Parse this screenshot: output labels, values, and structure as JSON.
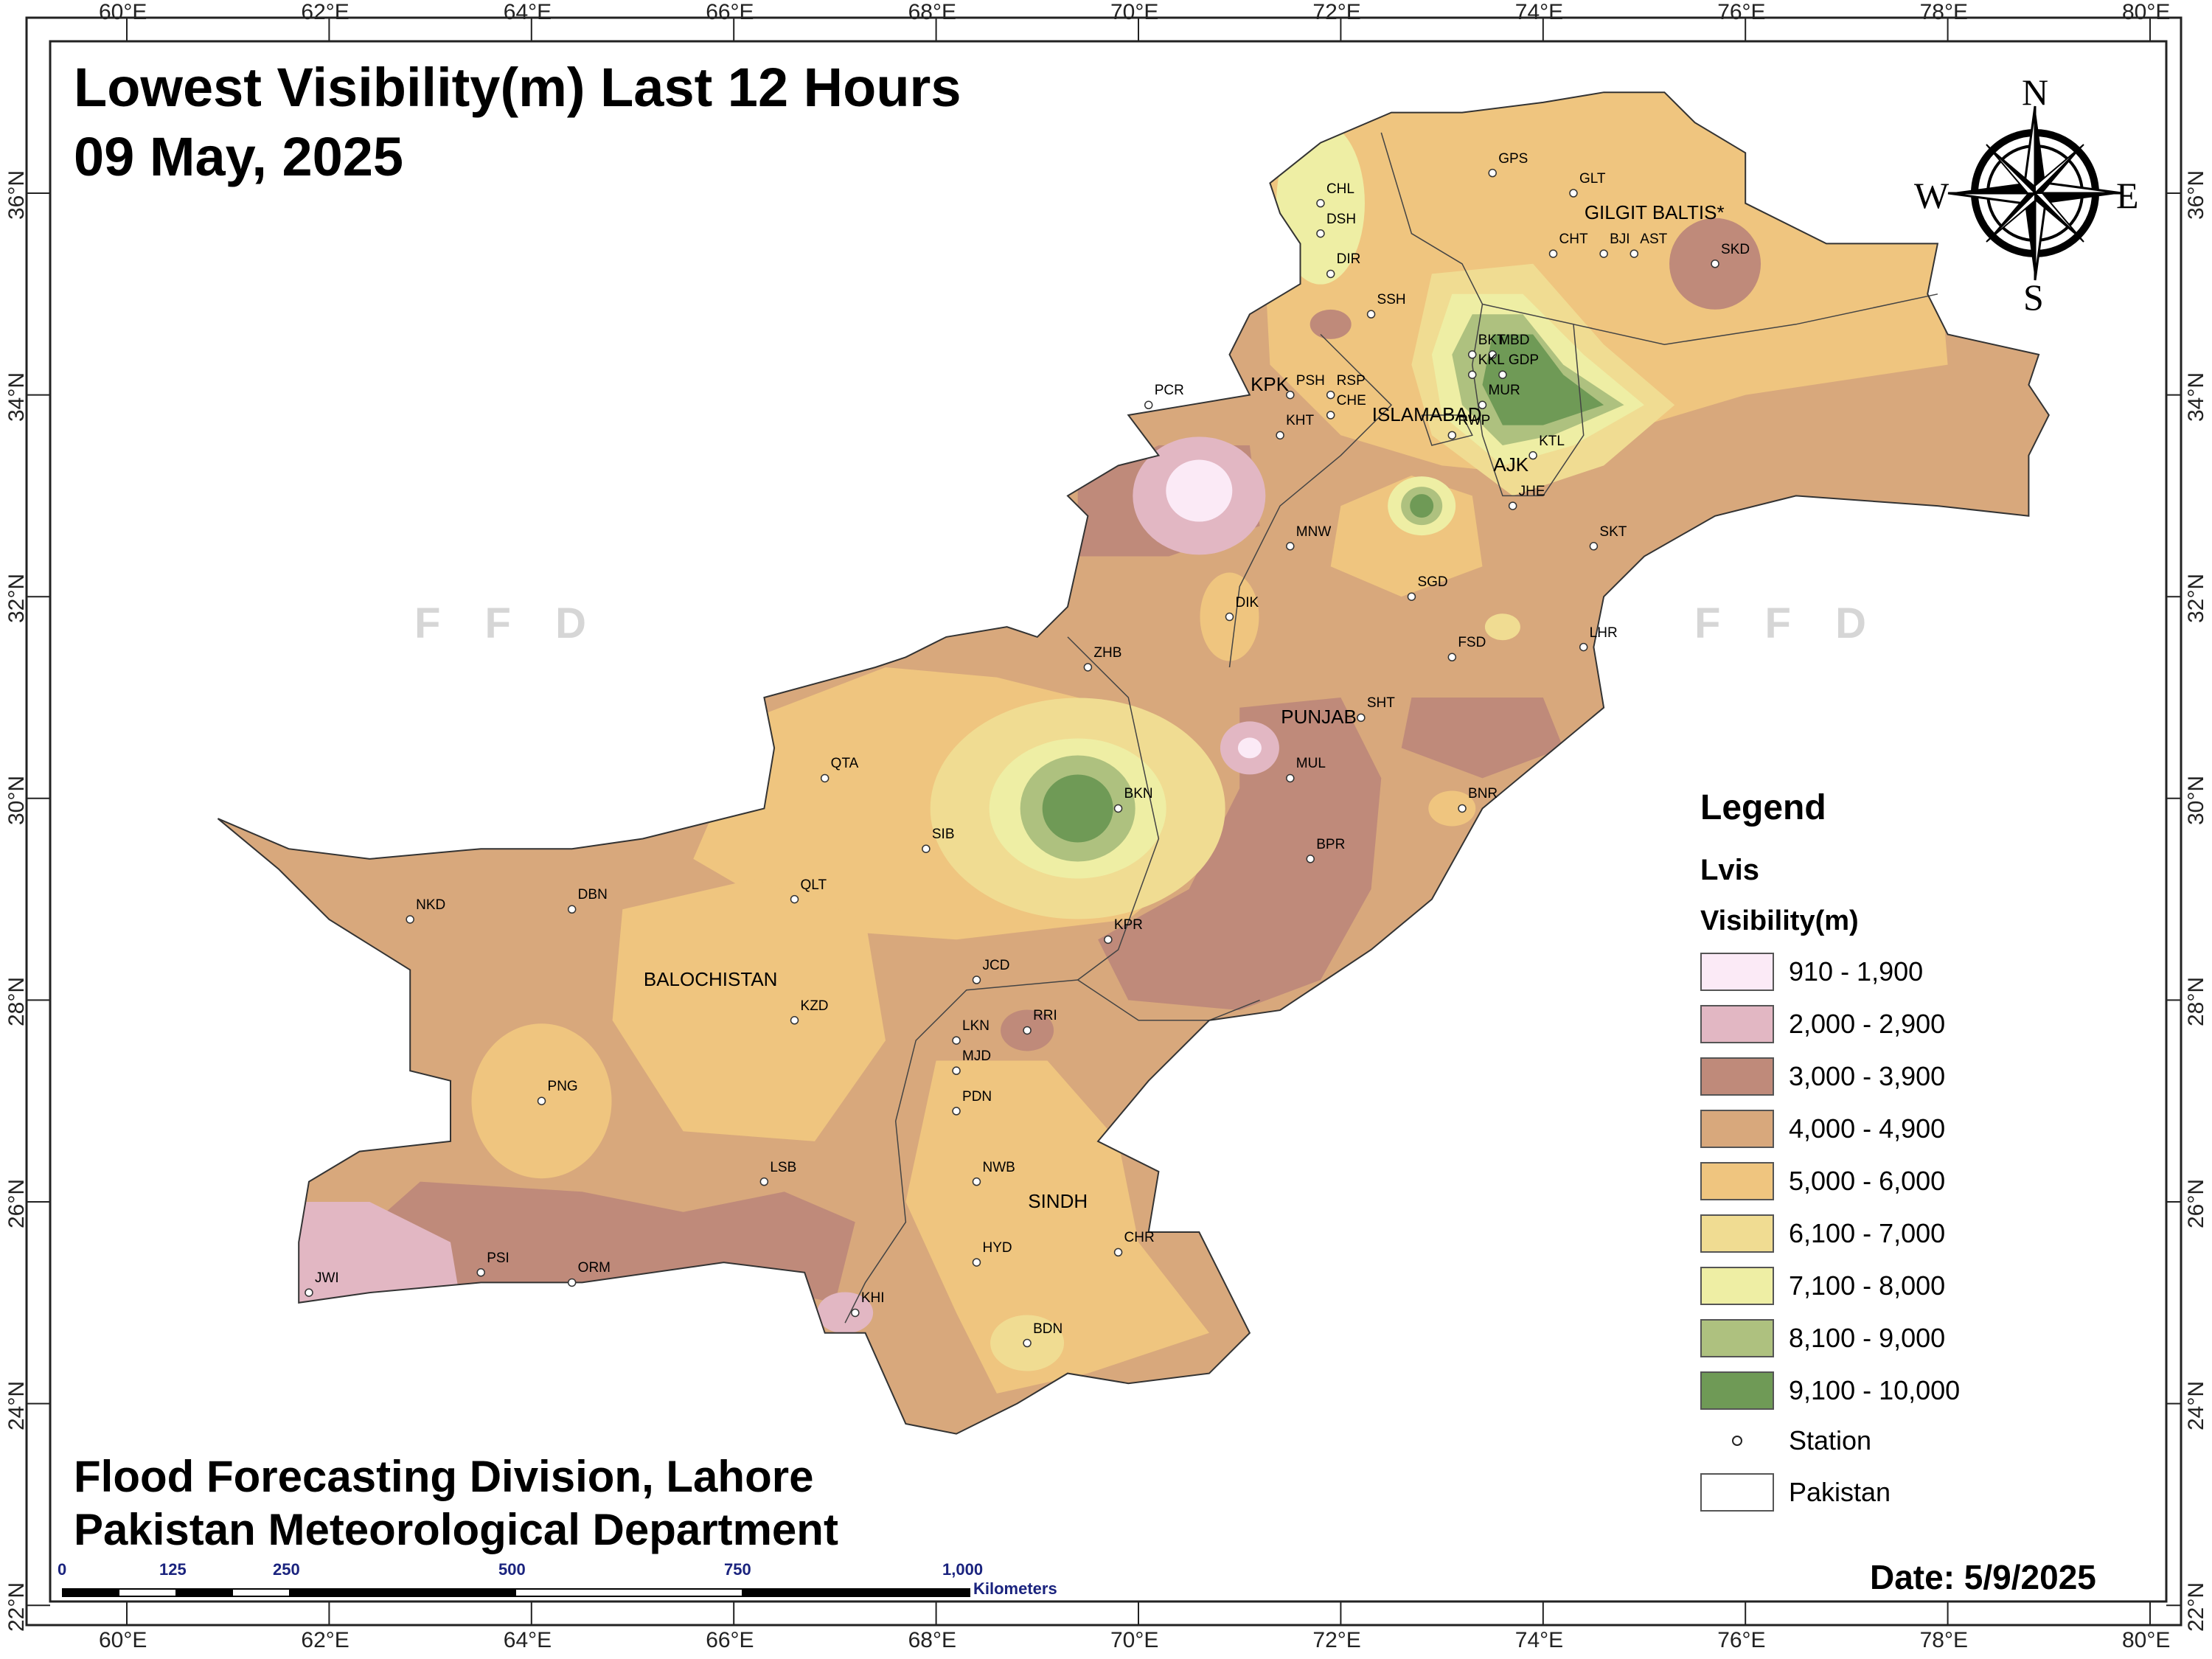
{
  "title": {
    "line1": "Lowest Visibility(m) Last 12 Hours",
    "line2": "09 May, 2025"
  },
  "footer": {
    "line1": "Flood Forecasting Division, Lahore",
    "line2": "Pakistan Meteorological Department"
  },
  "date_text": "Date: 5/9/2025",
  "watermark": "F F D",
  "legend": {
    "heading": "Legend",
    "layer": "Lvis",
    "field": "Visibility(m)",
    "classes": [
      {
        "label": "910 - 1,900",
        "color": "#fbeaf6"
      },
      {
        "label": "2,000 - 2,900",
        "color": "#e2b7c3"
      },
      {
        "label": "3,000 - 3,900",
        "color": "#bf8a7a"
      },
      {
        "label": "4,000 - 4,900",
        "color": "#d8a87c"
      },
      {
        "label": "5,000 - 6,000",
        "color": "#efc57f"
      },
      {
        "label": "6,100 - 7,000",
        "color": "#f0dc92"
      },
      {
        "label": "7,100 - 8,000",
        "color": "#eeeea4"
      },
      {
        "label": "8,100 - 9,000",
        "color": "#aec17f"
      },
      {
        "label": "9,100 - 10,000",
        "color": "#6f9a56"
      }
    ],
    "station_label": "Station",
    "boundary_label": "Pakistan"
  },
  "axes": {
    "longitude_ticks": [
      "60°E",
      "62°E",
      "64°E",
      "66°E",
      "68°E",
      "70°E",
      "72°E",
      "74°E",
      "76°E",
      "78°E",
      "80°E"
    ],
    "latitude_ticks": [
      "36°N",
      "34°N",
      "32°N",
      "30°N",
      "28°N",
      "26°N",
      "24°N",
      "22°N"
    ]
  },
  "scalebar": {
    "labels": [
      "0",
      "125",
      "250",
      "500",
      "750",
      "1,000"
    ],
    "unit": "Kilometers"
  },
  "compass": {
    "n": "N",
    "s": "S",
    "e": "E",
    "w": "W"
  },
  "regions": [
    {
      "name": "GILGIT BALTIS*",
      "lon": 74.7,
      "lat": 35.8
    },
    {
      "name": "KPK",
      "lon": 71.4,
      "lat": 34.1
    },
    {
      "name": "ISLAMABAD",
      "lon": 72.6,
      "lat": 33.8
    },
    {
      "name": "AJK",
      "lon": 73.8,
      "lat": 33.3
    },
    {
      "name": "PUNJAB",
      "lon": 71.7,
      "lat": 30.8
    },
    {
      "name": "BALOCHISTAN",
      "lon": 65.4,
      "lat": 28.2
    },
    {
      "name": "SINDH",
      "lon": 69.2,
      "lat": 26.0
    }
  ],
  "stations": [
    {
      "code": "GPS",
      "lon": 73.5,
      "lat": 36.2
    },
    {
      "code": "GLT",
      "lon": 74.3,
      "lat": 36.0
    },
    {
      "code": "CHL",
      "lon": 71.8,
      "lat": 35.9
    },
    {
      "code": "DSH",
      "lon": 71.8,
      "lat": 35.6
    },
    {
      "code": "CHT",
      "lon": 74.1,
      "lat": 35.4
    },
    {
      "code": "BJI",
      "lon": 74.6,
      "lat": 35.4
    },
    {
      "code": "AST",
      "lon": 74.9,
      "lat": 35.4
    },
    {
      "code": "SKD",
      "lon": 75.7,
      "lat": 35.3
    },
    {
      "code": "DIR",
      "lon": 71.9,
      "lat": 35.2
    },
    {
      "code": "SSH",
      "lon": 72.3,
      "lat": 34.8
    },
    {
      "code": "BKT",
      "lon": 73.3,
      "lat": 34.4
    },
    {
      "code": "MBD",
      "lon": 73.5,
      "lat": 34.4
    },
    {
      "code": "KKL",
      "lon": 73.3,
      "lat": 34.2
    },
    {
      "code": "GDP",
      "lon": 73.6,
      "lat": 34.2
    },
    {
      "code": "MUR",
      "lon": 73.4,
      "lat": 33.9
    },
    {
      "code": "PCR",
      "lon": 70.1,
      "lat": 33.9
    },
    {
      "code": "PSH",
      "lon": 71.5,
      "lat": 34.0
    },
    {
      "code": "RSP",
      "lon": 71.9,
      "lat": 34.0
    },
    {
      "code": "CHE",
      "lon": 71.9,
      "lat": 33.8
    },
    {
      "code": "KHT",
      "lon": 71.4,
      "lat": 33.6
    },
    {
      "code": "RWP",
      "lon": 73.1,
      "lat": 33.6
    },
    {
      "code": "KTL",
      "lon": 73.9,
      "lat": 33.4
    },
    {
      "code": "JHE",
      "lon": 73.7,
      "lat": 32.9
    },
    {
      "code": "MNW",
      "lon": 71.5,
      "lat": 32.5
    },
    {
      "code": "SKT",
      "lon": 74.5,
      "lat": 32.5
    },
    {
      "code": "SGD",
      "lon": 72.7,
      "lat": 32.0
    },
    {
      "code": "DIK",
      "lon": 70.9,
      "lat": 31.8
    },
    {
      "code": "LHR",
      "lon": 74.4,
      "lat": 31.5
    },
    {
      "code": "FSD",
      "lon": 73.1,
      "lat": 31.4
    },
    {
      "code": "ZHB",
      "lon": 69.5,
      "lat": 31.3
    },
    {
      "code": "SHT",
      "lon": 72.2,
      "lat": 30.8
    },
    {
      "code": "MUL",
      "lon": 71.5,
      "lat": 30.2
    },
    {
      "code": "QTA",
      "lon": 66.9,
      "lat": 30.2
    },
    {
      "code": "BNR",
      "lon": 73.2,
      "lat": 29.9
    },
    {
      "code": "BKN",
      "lon": 69.8,
      "lat": 29.9
    },
    {
      "code": "SIB",
      "lon": 67.9,
      "lat": 29.5
    },
    {
      "code": "BPR",
      "lon": 71.7,
      "lat": 29.4
    },
    {
      "code": "QLT",
      "lon": 66.6,
      "lat": 29.0
    },
    {
      "code": "NKD",
      "lon": 62.8,
      "lat": 28.8
    },
    {
      "code": "DBN",
      "lon": 64.4,
      "lat": 28.9
    },
    {
      "code": "KPR",
      "lon": 69.7,
      "lat": 28.6
    },
    {
      "code": "JCD",
      "lon": 68.4,
      "lat": 28.2
    },
    {
      "code": "KZD",
      "lon": 66.6,
      "lat": 27.8
    },
    {
      "code": "RRI",
      "lon": 68.9,
      "lat": 27.7
    },
    {
      "code": "LKN",
      "lon": 68.2,
      "lat": 27.6
    },
    {
      "code": "MJD",
      "lon": 68.2,
      "lat": 27.3
    },
    {
      "code": "PNG",
      "lon": 64.1,
      "lat": 27.0
    },
    {
      "code": "PDN",
      "lon": 68.2,
      "lat": 26.9
    },
    {
      "code": "NWB",
      "lon": 68.4,
      "lat": 26.2
    },
    {
      "code": "LSB",
      "lon": 66.3,
      "lat": 26.2
    },
    {
      "code": "CHR",
      "lon": 69.8,
      "lat": 25.5
    },
    {
      "code": "HYD",
      "lon": 68.4,
      "lat": 25.4
    },
    {
      "code": "PSI",
      "lon": 63.5,
      "lat": 25.3
    },
    {
      "code": "ORM",
      "lon": 64.4,
      "lat": 25.2
    },
    {
      "code": "JWI",
      "lon": 61.8,
      "lat": 25.1
    },
    {
      "code": "KHI",
      "lon": 67.2,
      "lat": 24.9
    },
    {
      "code": "BDN",
      "lon": 68.9,
      "lat": 24.6
    }
  ]
}
